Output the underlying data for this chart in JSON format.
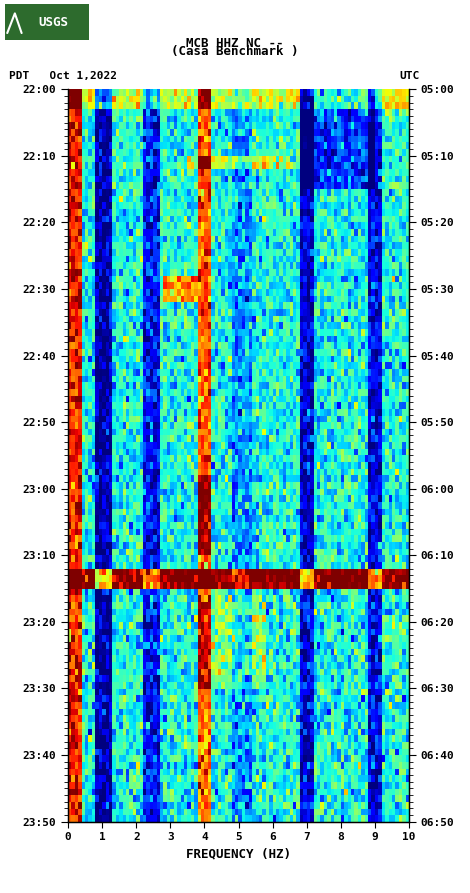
{
  "title_line1": "MCB HHZ NC --",
  "title_line2": "(Casa Benchmark )",
  "left_label": "PDT   Oct 1,2022",
  "right_label": "UTC",
  "freq_label": "FREQUENCY (HZ)",
  "freq_min": 0,
  "freq_max": 10,
  "time_ticks_pdt": [
    "22:00",
    "22:10",
    "22:20",
    "22:30",
    "22:40",
    "22:50",
    "23:00",
    "23:10",
    "23:20",
    "23:30",
    "23:40",
    "23:50"
  ],
  "time_ticks_utc": [
    "05:00",
    "05:10",
    "05:20",
    "05:30",
    "05:40",
    "05:50",
    "06:00",
    "06:10",
    "06:20",
    "06:30",
    "06:40",
    "06:50"
  ],
  "freq_ticks": [
    0,
    1,
    2,
    3,
    4,
    5,
    6,
    7,
    8,
    9,
    10
  ],
  "bg_color": "#ffffff",
  "seed": 42,
  "n_time": 110,
  "n_freq": 100,
  "usgs_green": "#2d6b2d"
}
